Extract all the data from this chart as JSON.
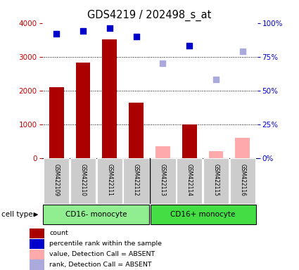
{
  "title": "GDS4219 / 202498_s_at",
  "samples": [
    "GSM422109",
    "GSM422110",
    "GSM422111",
    "GSM422112",
    "GSM422113",
    "GSM422114",
    "GSM422115",
    "GSM422116"
  ],
  "counts": [
    2100,
    2820,
    3520,
    1640,
    null,
    1000,
    null,
    null
  ],
  "counts_absent": [
    null,
    null,
    null,
    null,
    350,
    null,
    200,
    600
  ],
  "percentile_present": [
    92,
    94,
    96,
    90,
    null,
    83,
    null,
    null
  ],
  "percentile_absent": [
    null,
    null,
    null,
    null,
    70,
    null,
    58,
    79
  ],
  "detection": [
    "P",
    "P",
    "P",
    "P",
    "A",
    "P",
    "A",
    "A"
  ],
  "ylim_left": [
    0,
    4000
  ],
  "ylim_right": [
    0,
    100
  ],
  "yticks_left": [
    0,
    1000,
    2000,
    3000,
    4000
  ],
  "yticks_right": [
    0,
    25,
    50,
    75,
    100
  ],
  "ytick_labels_right": [
    "0%",
    "25%",
    "50%",
    "75%",
    "100%"
  ],
  "bar_color_present": "#aa0000",
  "bar_color_absent": "#ffaaaa",
  "scatter_color_present": "#0000cc",
  "scatter_color_absent": "#aaaadd",
  "left_axis_color": "#cc0000",
  "right_axis_color": "#0000cc",
  "group1_label": "CD16- monocyte",
  "group2_label": "CD16+ monocyte",
  "group1_color": "#90ee90",
  "group2_color": "#44dd44",
  "legend_items": [
    {
      "label": "count",
      "color": "#aa0000"
    },
    {
      "label": "percentile rank within the sample",
      "color": "#0000cc"
    },
    {
      "label": "value, Detection Call = ABSENT",
      "color": "#ffaaaa"
    },
    {
      "label": "rank, Detection Call = ABSENT",
      "color": "#aaaadd"
    }
  ],
  "cell_type_label": "cell type"
}
